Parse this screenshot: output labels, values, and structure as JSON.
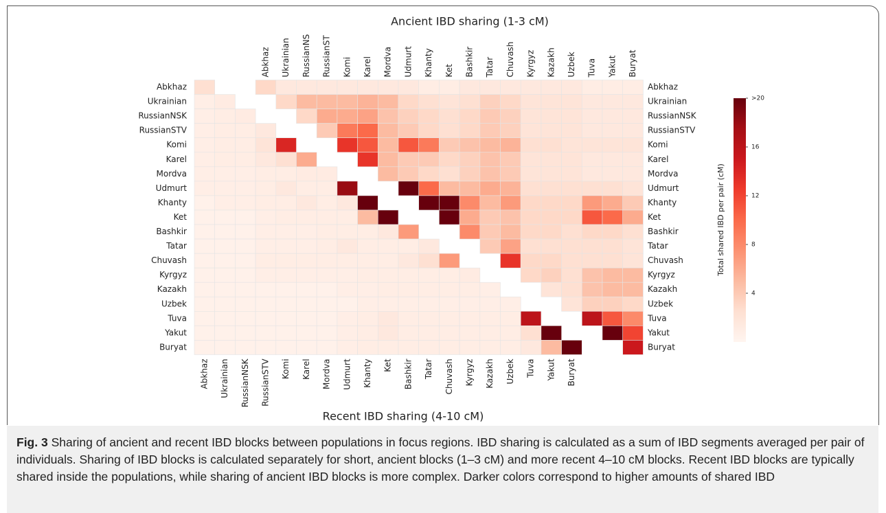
{
  "chart_data": {
    "type": "split-heatmap",
    "title": "Ancient IBD sharing (1-3 cM)",
    "xlabel": "Recent IBD sharing (4-10 cM)",
    "colorbar_label": "Total shared IBD per pair (cM)",
    "row_labels": [
      "Abkhaz",
      "Ukrainian",
      "RussianNSK",
      "RussianSTV",
      "Komi",
      "Karel",
      "Mordva",
      "Udmurt",
      "Khanty",
      "Ket",
      "Bashkir",
      "Tatar",
      "Chuvash",
      "Kyrgyz",
      "Kazakh",
      "Uzbek",
      "Tuva",
      "Yakut",
      "Buryat"
    ],
    "top_labels": [
      "Abkhaz",
      "Ukrainian",
      "RussianNS",
      "RussianST",
      "Komi",
      "Karel",
      "Mordva",
      "Udmurt",
      "Khanty",
      "Ket",
      "Bashkir",
      "Tatar",
      "Chuvash",
      "Kyrgyz",
      "Kazakh",
      "Uzbek",
      "Tuva",
      "Yakut",
      "Buryat"
    ],
    "colormap": "Reds",
    "clim": [
      0,
      20
    ],
    "cticks": [
      4,
      8,
      12,
      16,
      {
        "value": 20,
        "label": ">20"
      }
    ],
    "ancient": [
      [
        3,
        1.5,
        1.5,
        1.5,
        1.5,
        1.5,
        1.5,
        1.5,
        1,
        1,
        1.5,
        1.5,
        1.5,
        1.5,
        1.5,
        1.5,
        1,
        1,
        1
      ],
      [
        3,
        5,
        5,
        5,
        5.5,
        5,
        3,
        2.5,
        2,
        2.5,
        3.5,
        3,
        2,
        2,
        2,
        1.5,
        1.5,
        1.5
      ],
      [
        3,
        6,
        6,
        6.5,
        4.5,
        3.5,
        3,
        2.5,
        3,
        4,
        3.5,
        2,
        2,
        2,
        1.5,
        1.5,
        1.5
      ],
      [
        4,
        9,
        10,
        5,
        4,
        3,
        2.5,
        3,
        4,
        3.5,
        2,
        2,
        2,
        1.5,
        1.5,
        1.5
      ],
      [
        13,
        11,
        5,
        11,
        9,
        4,
        4.5,
        5,
        5.5,
        2.5,
        2.5,
        2,
        2,
        2,
        2
      ],
      [
        13,
        5,
        4,
        4,
        3,
        3.5,
        4.5,
        4,
        2,
        2,
        2,
        1.5,
        1.5,
        1.5
      ],
      [
        5,
        4,
        3,
        2.5,
        3.5,
        4.5,
        4,
        2,
        2,
        2,
        1.5,
        1.5,
        1.5
      ],
      [
        20,
        10,
        5,
        5,
        6,
        5.5,
        2.5,
        2.5,
        2.5,
        2.5,
        2.5,
        2
      ],
      [
        20,
        20,
        8,
        5,
        7,
        3,
        3,
        3,
        7,
        6,
        4
      ],
      [
        20,
        6,
        4,
        4.5,
        3,
        3,
        3,
        11,
        10,
        6
      ],
      [
        8,
        4,
        5,
        3,
        3,
        2.5,
        3,
        3,
        2.5
      ],
      [
        4,
        6.5,
        2.5,
        2.5,
        2.5,
        2.5,
        2.5,
        2
      ],
      [
        13,
        3,
        3,
        2.5,
        2.5,
        2.5,
        2
      ],
      [
        3,
        3.5,
        2.5,
        4.5,
        5,
        5
      ],
      [
        2,
        2.5,
        4.5,
        5,
        5
      ],
      [
        2,
        3.5,
        3.5,
        3
      ],
      [
        16,
        11,
        8
      ],
      [
        20,
        12
      ],
      [
        15
      ]
    ],
    "recent": [
      [
        2.5
      ],
      [
        0.8,
        1.2
      ],
      [
        0.8,
        1,
        1.2
      ],
      [
        0.8,
        1,
        1,
        1.5
      ],
      [
        0.8,
        1,
        1,
        2,
        14
      ],
      [
        0.8,
        1,
        1,
        1.5,
        2.5,
        6
      ],
      [
        0.8,
        0.8,
        0.8,
        1,
        1,
        1.2,
        1.2
      ],
      [
        0.8,
        0.8,
        0.8,
        1,
        1.5,
        1,
        1,
        18
      ],
      [
        0.5,
        0.8,
        0.8,
        1,
        1,
        1.5,
        1,
        1.5,
        20
      ],
      [
        0.5,
        0.5,
        0.5,
        0.8,
        1,
        1,
        1,
        1,
        5,
        20
      ],
      [
        0.5,
        0.5,
        0.5,
        0.8,
        0.8,
        0.8,
        1,
        1,
        1,
        1.5,
        7
      ],
      [
        0.5,
        0.5,
        0.5,
        0.8,
        0.8,
        0.8,
        1,
        1.5,
        1,
        1,
        1,
        1.5
      ],
      [
        0.5,
        0.5,
        0.5,
        1,
        1,
        1,
        1,
        1,
        1,
        1,
        1.5,
        2.5,
        7
      ],
      [
        0.5,
        0.5,
        0.5,
        0.8,
        0.8,
        0.8,
        0.8,
        0.8,
        1,
        1,
        1,
        1,
        1,
        1.2
      ],
      [
        0.5,
        0.5,
        0.5,
        0.5,
        0.5,
        0.5,
        0.5,
        0.8,
        0.8,
        1,
        1,
        1,
        1,
        1,
        0.8
      ],
      [
        0.5,
        0.5,
        0.5,
        0.5,
        0.5,
        0.5,
        0.5,
        0.5,
        0.8,
        0.8,
        0.8,
        0.8,
        0.8,
        0.8,
        0.8,
        0.8
      ],
      [
        0.5,
        0.5,
        0.5,
        0.5,
        0.5,
        0.5,
        0.5,
        0.8,
        1,
        1.5,
        1,
        1,
        1,
        1,
        1,
        1,
        16
      ],
      [
        0.5,
        0.5,
        0.5,
        0.5,
        0.5,
        0.5,
        0.5,
        0.8,
        1,
        1.5,
        1,
        1,
        1,
        1,
        1,
        1,
        2.5,
        20
      ],
      [
        0.5,
        0.5,
        0.5,
        0.5,
        0.5,
        0.5,
        0.5,
        0.8,
        1,
        1,
        1,
        1,
        1,
        1,
        1,
        1,
        1.5,
        5,
        20
      ]
    ]
  },
  "caption": {
    "label": "Fig. 3",
    "text": "Sharing of ancient and recent IBD blocks between populations in focus regions. IBD sharing is calculated as a sum of IBD segments averaged per pair of individuals. Sharing of IBD blocks is calculated separately for short, ancient blocks (1–3 cM) and more recent 4–10 cM blocks. Recent IBD blocks are typically shared inside the populations, while sharing of ancient IBD blocks is more complex. Darker colors correspond to higher amounts of shared IBD"
  }
}
